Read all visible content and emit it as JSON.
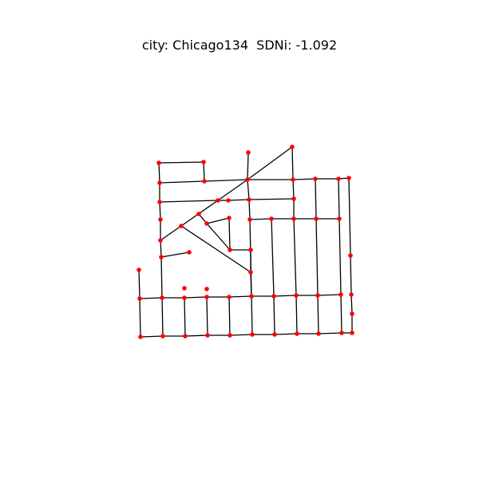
{
  "title": "city: Chicago134  SDNi: -1.092",
  "colors": {
    "edge": "#000000",
    "node": "#ff0000",
    "background": "#ffffff"
  }
}
